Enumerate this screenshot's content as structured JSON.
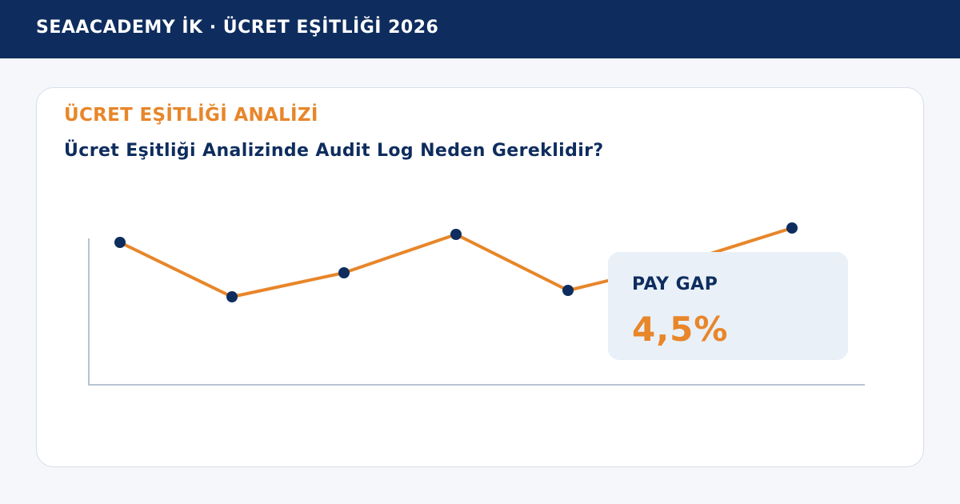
{
  "header": {
    "title": "SEAACADEMY İK · ÜCRET EŞİTLİĞİ 2026"
  },
  "card": {
    "eyebrow": "ÜCRET EŞİTLİĞİ ANALİZİ",
    "subtitle": "Ücret Eşitliği Analizinde Audit Log Neden Gereklidir?"
  },
  "kpi": {
    "label": "PAY GAP",
    "value": "4,5%"
  },
  "colors": {
    "header_bg": "#0e2d5e",
    "accent": "#e8862a",
    "marker": "#0e2d5e",
    "axis": "#b8c3d2",
    "kpi_bg": "#e9f0f8"
  },
  "chart_data": {
    "type": "line",
    "x": [
      1,
      2,
      3,
      4,
      5,
      6,
      7
    ],
    "values": [
      89,
      55,
      70,
      94,
      59,
      76,
      98
    ],
    "ylim": [
      0,
      100
    ],
    "grid": false,
    "xlabel": "",
    "ylabel": ""
  }
}
